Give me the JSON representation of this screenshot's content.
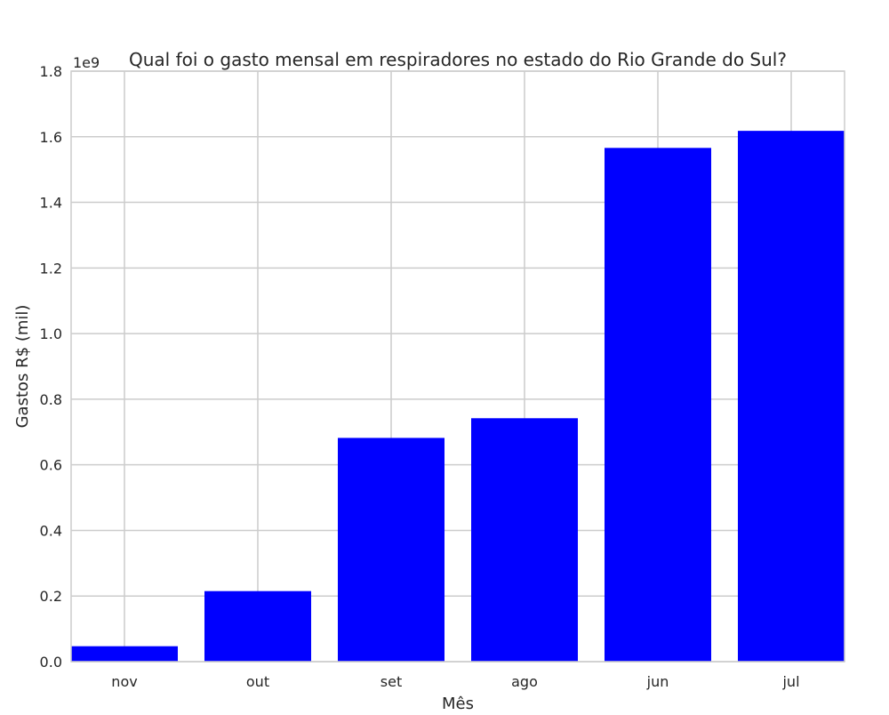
{
  "chart_data": {
    "type": "bar",
    "title": "Qual foi o gasto mensal em respiradores no estado do Rio Grande do Sul?",
    "xlabel": "Mês",
    "ylabel": "Gastos R$ (mil)",
    "y_offset_label": "1e9",
    "categories": [
      "nov",
      "out",
      "set",
      "ago",
      "jun",
      "jul"
    ],
    "values": [
      47000000,
      215000000,
      682000000,
      742000000,
      1566000000,
      1618000000
    ],
    "ylim": [
      0,
      1800000000
    ],
    "yticks": [
      0,
      200000000,
      400000000,
      600000000,
      800000000,
      1000000000,
      1200000000,
      1400000000,
      1600000000,
      1800000000
    ],
    "ytick_labels": [
      "0.0",
      "0.2",
      "0.4",
      "0.6",
      "0.8",
      "1.0",
      "1.2",
      "1.4",
      "1.6",
      "1.8"
    ],
    "grid": true,
    "colors": {
      "bar": "#0000ff",
      "grid": "#cccccc",
      "frame": "#cccccc",
      "text": "#262626"
    }
  }
}
